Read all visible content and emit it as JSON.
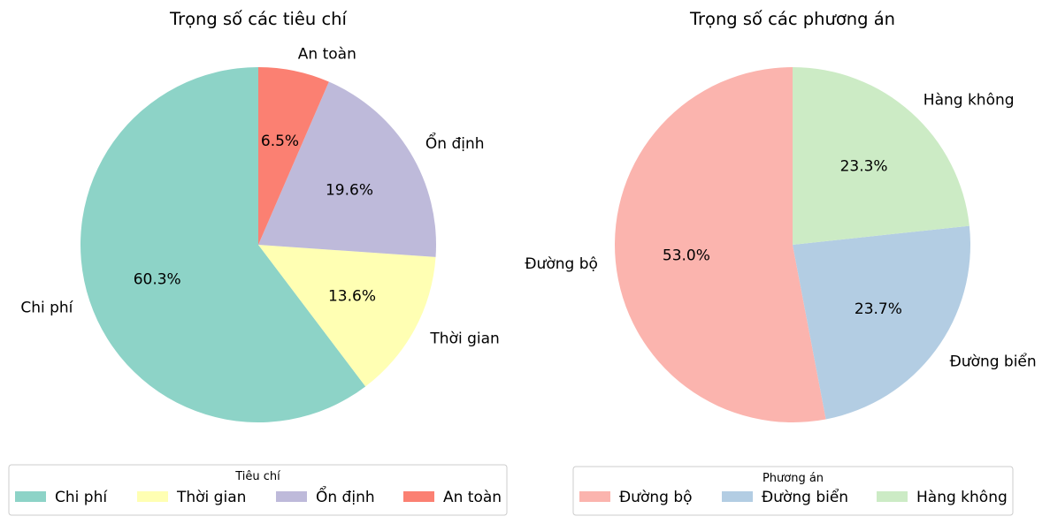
{
  "chart_data": [
    {
      "type": "pie",
      "title": "Trọng số các tiêu chí",
      "categories": [
        "Chi phí",
        "Thời gian",
        "Ổn định",
        "An toàn"
      ],
      "values": [
        60.3,
        13.6,
        19.6,
        6.5
      ],
      "percent_labels": [
        "60.3%",
        "13.6%",
        "19.6%",
        "6.5%"
      ],
      "colors": [
        "#8dd3c7",
        "#ffffb3",
        "#bebada",
        "#fb8072"
      ],
      "legend": {
        "title": "Tiêu chí",
        "placement": "bottom"
      }
    },
    {
      "type": "pie",
      "title": "Trọng số các phương án",
      "categories": [
        "Đường bộ",
        "Đường biển",
        "Hàng không"
      ],
      "values": [
        53.0,
        23.7,
        23.3
      ],
      "percent_labels": [
        "53.0%",
        "23.7%",
        "23.3%"
      ],
      "colors": [
        "#fbb4ae",
        "#b3cde3",
        "#ccebc5"
      ],
      "legend": {
        "title": "Phương án",
        "placement": "bottom"
      }
    }
  ]
}
